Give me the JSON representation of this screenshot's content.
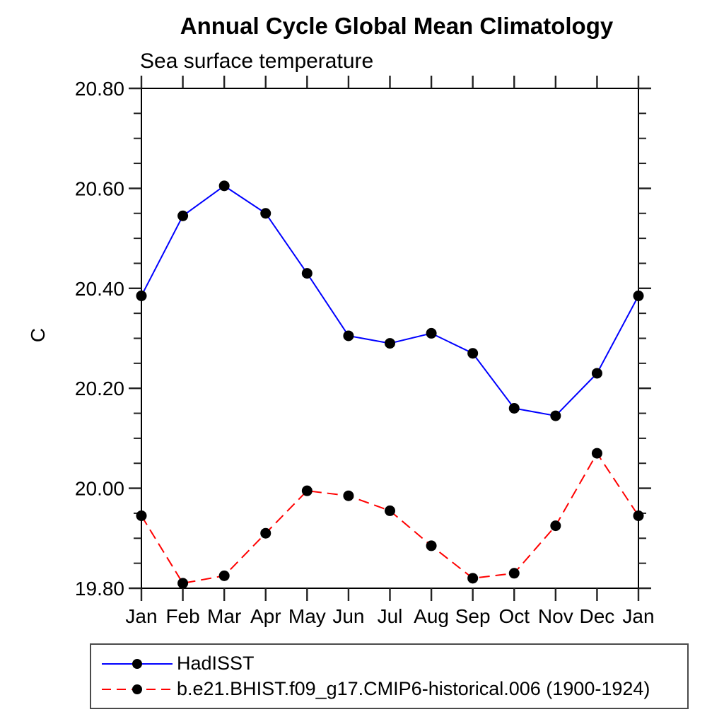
{
  "chart_data": {
    "type": "line",
    "title": "Annual Cycle Global Mean Climatology",
    "subtitle": "Sea surface temperature",
    "ylabel": "C",
    "xlabel": "",
    "categories": [
      "Jan",
      "Feb",
      "Mar",
      "Apr",
      "May",
      "Jun",
      "Jul",
      "Aug",
      "Sep",
      "Oct",
      "Nov",
      "Dec",
      "Jan"
    ],
    "ylim": [
      19.8,
      20.8
    ],
    "y_major_ticks": [
      19.8,
      20.0,
      20.2,
      20.4,
      20.6,
      20.8
    ],
    "y_tick_labels": [
      "19.80",
      "20.00",
      "20.20",
      "20.40",
      "20.60",
      "20.80"
    ],
    "y_minor_step": 0.05,
    "grid": false,
    "legend_position": "bottom-left",
    "background_color": "#ffffff",
    "axis_color": "#000000",
    "tick_color": "#222222",
    "marker_shape": "circle",
    "series": [
      {
        "name": "HadISST",
        "color": "#0000ff",
        "line_style": "solid",
        "marker_color": "#000000",
        "values": [
          20.385,
          20.545,
          20.605,
          20.55,
          20.43,
          20.305,
          20.29,
          20.31,
          20.27,
          20.16,
          20.145,
          20.23,
          20.385
        ]
      },
      {
        "name": "b.e21.BHIST.f09_g17.CMIP6-historical.006 (1900-1924)",
        "color": "#ff0000",
        "line_style": "dashed",
        "marker_color": "#000000",
        "values": [
          19.945,
          19.81,
          19.825,
          19.91,
          19.995,
          19.985,
          19.955,
          19.885,
          19.82,
          19.83,
          19.925,
          20.07,
          19.945
        ]
      }
    ]
  }
}
